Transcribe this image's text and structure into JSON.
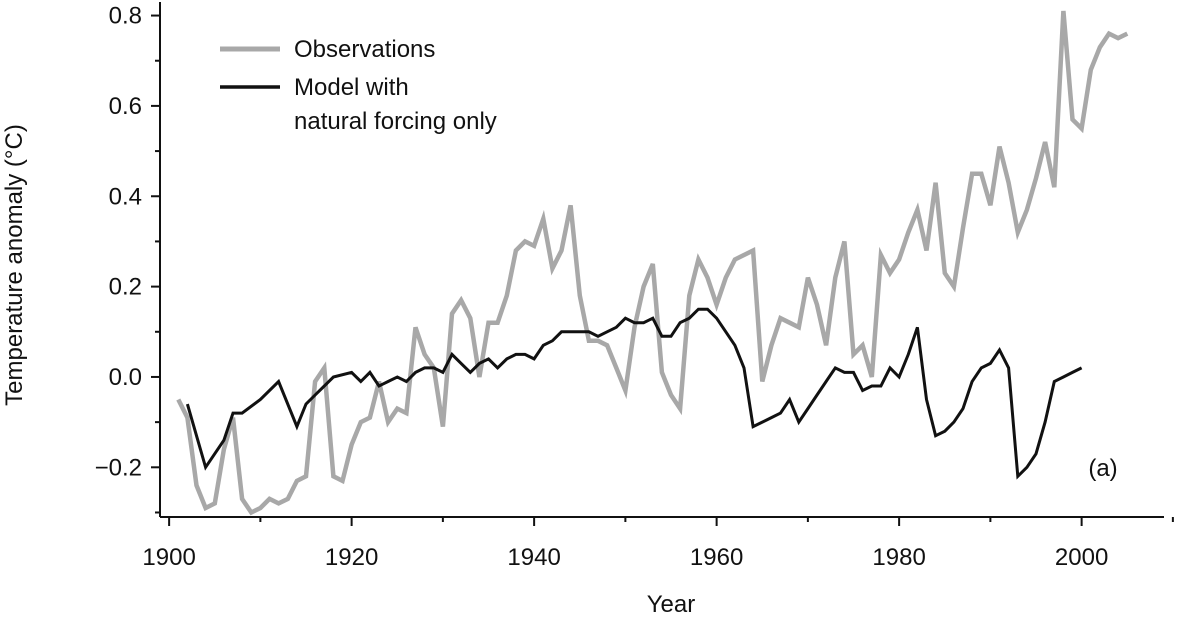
{
  "chart_data": {
    "type": "line",
    "title": "",
    "xlabel": "Year",
    "ylabel": "Temperature anomaly (°C)",
    "xlim": [
      1899,
      2011
    ],
    "ylim": [
      -0.31,
      0.83
    ],
    "x_ticks": [
      1900,
      1920,
      1940,
      1960,
      1980,
      2000
    ],
    "y_ticks": [
      -0.2,
      0.0,
      0.2,
      0.4,
      0.6,
      0.8
    ],
    "x_tick_labels": [
      "1900",
      "1920",
      "1940",
      "1960",
      "1980",
      "2000"
    ],
    "y_tick_labels": [
      "−0.2",
      "0.0",
      "0.2",
      "0.4",
      "0.6",
      "0.8"
    ],
    "panel_label": "(a)",
    "grid": false,
    "legend_position": "top-left",
    "colors": {
      "observations": "#a8a8a8",
      "model": "#111111",
      "axis": "#111111"
    },
    "series": [
      {
        "name": "Observations",
        "x": [
          1901,
          1902,
          1903,
          1904,
          1905,
          1906,
          1907,
          1908,
          1909,
          1910,
          1911,
          1912,
          1913,
          1914,
          1915,
          1916,
          1917,
          1918,
          1919,
          1920,
          1921,
          1922,
          1923,
          1924,
          1925,
          1926,
          1927,
          1928,
          1929,
          1930,
          1931,
          1932,
          1933,
          1934,
          1935,
          1936,
          1937,
          1938,
          1939,
          1940,
          1941,
          1942,
          1943,
          1944,
          1945,
          1946,
          1947,
          1948,
          1949,
          1950,
          1951,
          1952,
          1953,
          1954,
          1955,
          1956,
          1957,
          1958,
          1959,
          1960,
          1961,
          1962,
          1963,
          1964,
          1965,
          1966,
          1967,
          1968,
          1969,
          1970,
          1971,
          1972,
          1973,
          1974,
          1975,
          1976,
          1977,
          1978,
          1979,
          1980,
          1981,
          1982,
          1983,
          1984,
          1985,
          1986,
          1987,
          1988,
          1989,
          1990,
          1991,
          1992,
          1993,
          1994,
          1995,
          1996,
          1997,
          1998,
          1999,
          2000,
          2001,
          2002,
          2003,
          2004,
          2005
        ],
        "values": [
          -0.05,
          -0.09,
          -0.24,
          -0.29,
          -0.28,
          -0.16,
          -0.09,
          -0.27,
          -0.3,
          -0.29,
          -0.27,
          -0.28,
          -0.27,
          -0.23,
          -0.22,
          -0.01,
          0.02,
          -0.22,
          -0.23,
          -0.15,
          -0.1,
          -0.09,
          -0.01,
          -0.1,
          -0.07,
          -0.08,
          0.11,
          0.05,
          0.02,
          -0.11,
          0.14,
          0.17,
          0.13,
          0.0,
          0.12,
          0.12,
          0.18,
          0.28,
          0.3,
          0.29,
          0.35,
          0.24,
          0.28,
          0.38,
          0.18,
          0.08,
          0.08,
          0.07,
          0.02,
          -0.03,
          0.11,
          0.2,
          0.25,
          0.01,
          -0.04,
          -0.07,
          0.18,
          0.26,
          0.22,
          0.16,
          0.22,
          0.26,
          0.27,
          0.28,
          -0.01,
          0.07,
          0.13,
          0.12,
          0.11,
          0.22,
          0.16,
          0.07,
          0.22,
          0.3,
          0.05,
          0.07,
          0.0,
          0.27,
          0.23,
          0.26,
          0.32,
          0.37,
          0.28,
          0.43,
          0.23,
          0.2,
          0.33,
          0.45,
          0.45,
          0.38,
          0.51,
          0.43,
          0.32,
          0.37,
          0.44,
          0.52,
          0.42,
          0.81,
          0.57,
          0.55,
          0.68,
          0.73,
          0.76,
          0.75,
          0.76
        ]
      },
      {
        "name": "Model with natural forcing only",
        "x": [
          1902,
          1904,
          1906,
          1907,
          1908,
          1910,
          1912,
          1914,
          1915,
          1916,
          1917,
          1918,
          1920,
          1921,
          1922,
          1923,
          1924,
          1925,
          1926,
          1927,
          1928,
          1929,
          1930,
          1931,
          1932,
          1933,
          1934,
          1935,
          1936,
          1937,
          1938,
          1939,
          1940,
          1941,
          1942,
          1943,
          1944,
          1945,
          1946,
          1947,
          1948,
          1949,
          1950,
          1951,
          1952,
          1953,
          1954,
          1955,
          1956,
          1957,
          1958,
          1959,
          1960,
          1961,
          1962,
          1963,
          1964,
          1965,
          1966,
          1967,
          1968,
          1969,
          1970,
          1971,
          1972,
          1973,
          1974,
          1975,
          1976,
          1977,
          1978,
          1979,
          1980,
          1981,
          1982,
          1983,
          1984,
          1985,
          1986,
          1987,
          1988,
          1989,
          1990,
          1991,
          1992,
          1993,
          1994,
          1995,
          1996,
          1997,
          1998,
          1999,
          2000
        ],
        "values": [
          -0.06,
          -0.2,
          -0.14,
          -0.08,
          -0.08,
          -0.05,
          -0.01,
          -0.11,
          -0.06,
          -0.04,
          -0.02,
          0.0,
          0.01,
          -0.01,
          0.01,
          -0.02,
          -0.01,
          0.0,
          -0.01,
          0.01,
          0.02,
          0.02,
          0.01,
          0.05,
          0.03,
          0.01,
          0.03,
          0.04,
          0.02,
          0.04,
          0.05,
          0.05,
          0.04,
          0.07,
          0.08,
          0.1,
          0.1,
          0.1,
          0.1,
          0.09,
          0.1,
          0.11,
          0.13,
          0.12,
          0.12,
          0.13,
          0.09,
          0.09,
          0.12,
          0.13,
          0.15,
          0.15,
          0.13,
          0.1,
          0.07,
          0.02,
          -0.11,
          -0.1,
          -0.09,
          -0.08,
          -0.05,
          -0.1,
          -0.07,
          -0.04,
          -0.01,
          0.02,
          0.01,
          0.01,
          -0.03,
          -0.02,
          -0.02,
          0.02,
          0.0,
          0.05,
          0.11,
          -0.05,
          -0.13,
          -0.12,
          -0.1,
          -0.07,
          -0.01,
          0.02,
          0.03,
          0.06,
          0.02,
          -0.22,
          -0.2,
          -0.17,
          -0.1,
          -0.01,
          0.0,
          0.01,
          0.02
        ]
      }
    ],
    "legend": [
      {
        "lines": [
          "Observations"
        ]
      },
      {
        "lines": [
          "Model with",
          "natural forcing only"
        ]
      }
    ]
  }
}
